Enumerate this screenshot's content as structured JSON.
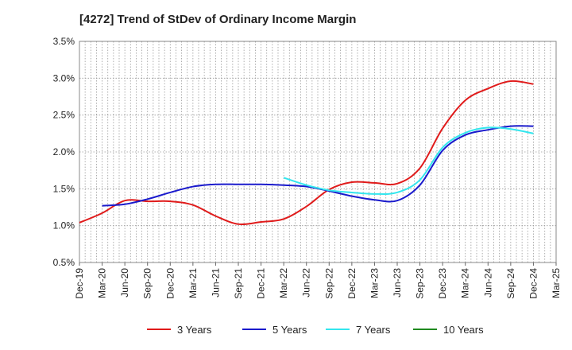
{
  "chart_data": {
    "type": "line",
    "title": "[4272]  Trend of StDev of Ordinary Income Margin",
    "xlabel": "",
    "ylabel": "",
    "x_ticks": [
      "Dec-19",
      "Mar-20",
      "Jun-20",
      "Sep-20",
      "Dec-20",
      "Mar-21",
      "Jun-21",
      "Sep-21",
      "Dec-21",
      "Mar-22",
      "Jun-22",
      "Sep-22",
      "Dec-22",
      "Mar-23",
      "Jun-23",
      "Sep-23",
      "Dec-23",
      "Mar-24",
      "Jun-24",
      "Sep-24",
      "Dec-24",
      "Mar-25"
    ],
    "y_ticks": [
      "0.5%",
      "1.0%",
      "1.5%",
      "2.0%",
      "2.5%",
      "3.0%",
      "3.5%"
    ],
    "ylim": [
      0.5,
      3.5
    ],
    "grid": true,
    "legend_position": "bottom",
    "series": [
      {
        "name": "3 Years",
        "color": "#e01b1b",
        "points": [
          [
            "Dec-19",
            1.04
          ],
          [
            "Mar-20",
            1.17
          ],
          [
            "Jun-20",
            1.34
          ],
          [
            "Sep-20",
            1.33
          ],
          [
            "Dec-20",
            1.33
          ],
          [
            "Mar-21",
            1.28
          ],
          [
            "Jun-21",
            1.13
          ],
          [
            "Sep-21",
            1.02
          ],
          [
            "Dec-21",
            1.05
          ],
          [
            "Mar-22",
            1.09
          ],
          [
            "Jun-22",
            1.26
          ],
          [
            "Sep-22",
            1.49
          ],
          [
            "Dec-22",
            1.59
          ],
          [
            "Mar-23",
            1.58
          ],
          [
            "Jun-23",
            1.57
          ],
          [
            "Sep-23",
            1.78
          ],
          [
            "Dec-23",
            2.32
          ],
          [
            "Mar-24",
            2.7
          ],
          [
            "Jun-24",
            2.86
          ],
          [
            "Sep-24",
            2.96
          ],
          [
            "Dec-24",
            2.92
          ]
        ]
      },
      {
        "name": "5 Years",
        "color": "#1a1acc",
        "points": [
          [
            "Mar-20",
            1.27
          ],
          [
            "Jun-20",
            1.29
          ],
          [
            "Sep-20",
            1.36
          ],
          [
            "Dec-20",
            1.45
          ],
          [
            "Mar-21",
            1.53
          ],
          [
            "Jun-21",
            1.56
          ],
          [
            "Sep-21",
            1.56
          ],
          [
            "Dec-21",
            1.56
          ],
          [
            "Mar-22",
            1.55
          ],
          [
            "Jun-22",
            1.53
          ],
          [
            "Sep-22",
            1.47
          ],
          [
            "Dec-22",
            1.4
          ],
          [
            "Mar-23",
            1.35
          ],
          [
            "Jun-23",
            1.34
          ],
          [
            "Sep-23",
            1.55
          ],
          [
            "Dec-23",
            2.02
          ],
          [
            "Mar-24",
            2.23
          ],
          [
            "Jun-24",
            2.3
          ],
          [
            "Sep-24",
            2.35
          ],
          [
            "Dec-24",
            2.35
          ]
        ]
      },
      {
        "name": "7 Years",
        "color": "#33e6ee",
        "points": [
          [
            "Mar-22",
            1.65
          ],
          [
            "Jun-22",
            1.55
          ],
          [
            "Sep-22",
            1.48
          ],
          [
            "Dec-22",
            1.45
          ],
          [
            "Mar-23",
            1.43
          ],
          [
            "Jun-23",
            1.45
          ],
          [
            "Sep-23",
            1.62
          ],
          [
            "Dec-23",
            2.06
          ],
          [
            "Mar-24",
            2.26
          ],
          [
            "Jun-24",
            2.33
          ],
          [
            "Sep-24",
            2.31
          ],
          [
            "Dec-24",
            2.25
          ]
        ]
      },
      {
        "name": "10 Years",
        "color": "#1f8a1f",
        "points": []
      }
    ]
  }
}
